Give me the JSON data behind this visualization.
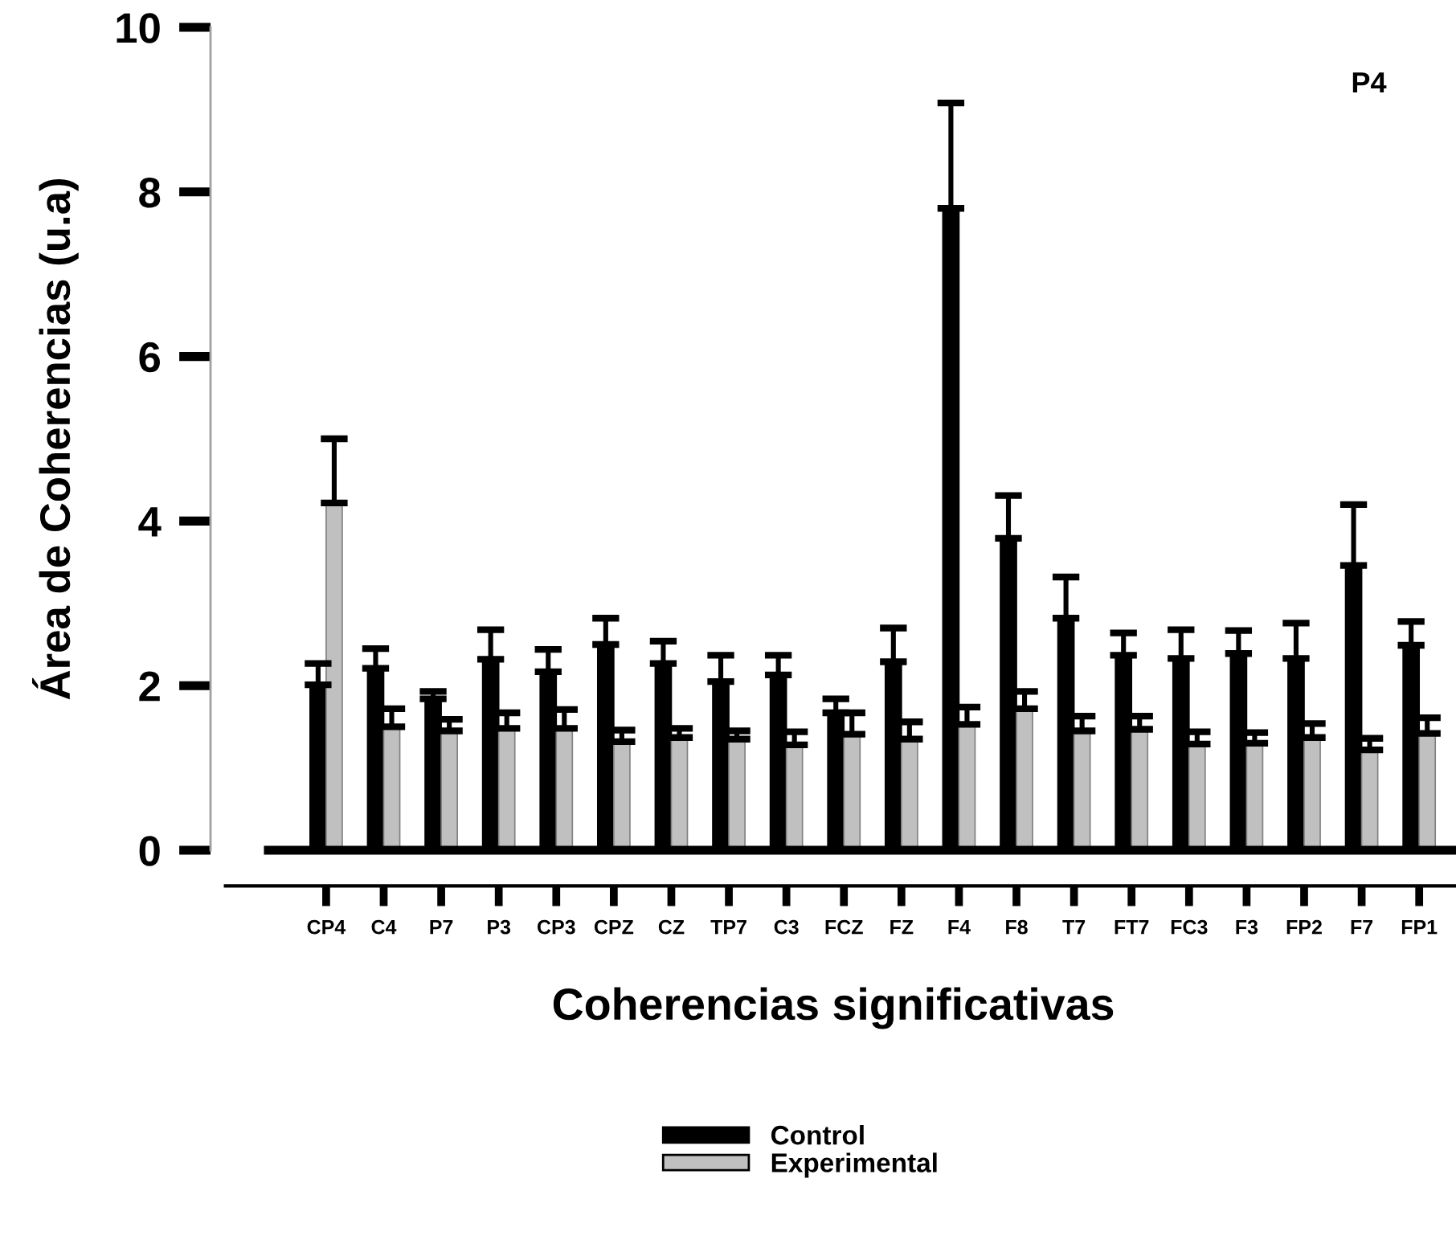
{
  "chart_data": {
    "type": "bar",
    "xlabel": "Coherencias significativas",
    "ylabel": "Área de Coherencias (u.a)",
    "annotations": [
      "P4"
    ],
    "categories": [
      "CP4",
      "C4",
      "P7",
      "P3",
      "CP3",
      "CPZ",
      "CZ",
      "TP7",
      "C3",
      "FCZ",
      "FZ",
      "F4",
      "F8",
      "T7",
      "FT7",
      "FC3",
      "F3",
      "FP2",
      "F7",
      "FP1"
    ],
    "series": [
      {
        "name": "Control",
        "color": "#000000",
        "values": [
          2.01,
          2.21,
          1.84,
          2.32,
          2.17,
          2.5,
          2.27,
          2.05,
          2.13,
          1.67,
          2.29,
          7.8,
          3.79,
          2.82,
          2.37,
          2.33,
          2.39,
          2.33,
          3.46,
          2.49
        ],
        "errors": [
          [
            2.01,
            2.27
          ],
          [
            2.21,
            2.45
          ],
          [
            1.84,
            1.93
          ],
          [
            2.32,
            2.68
          ],
          [
            2.17,
            2.44
          ],
          [
            2.5,
            2.82
          ],
          [
            2.27,
            2.54
          ],
          [
            2.05,
            2.37
          ],
          [
            2.13,
            2.37
          ],
          [
            1.67,
            1.84
          ],
          [
            2.29,
            2.7
          ],
          [
            7.8,
            9.08
          ],
          [
            3.79,
            4.31
          ],
          [
            2.82,
            3.32
          ],
          [
            2.37,
            2.64
          ],
          [
            2.33,
            2.68
          ],
          [
            2.39,
            2.67
          ],
          [
            2.33,
            2.76
          ],
          [
            3.46,
            4.2
          ],
          [
            2.49,
            2.78
          ]
        ]
      },
      {
        "name": "Experimental",
        "color": "#c0c0c0",
        "values": [
          4.22,
          1.5,
          1.45,
          1.48,
          1.48,
          1.32,
          1.37,
          1.35,
          1.28,
          1.41,
          1.35,
          1.53,
          1.72,
          1.45,
          1.47,
          1.29,
          1.3,
          1.37,
          1.22,
          1.42
        ],
        "errors": [
          [
            4.22,
            5.0
          ],
          [
            1.5,
            1.72
          ],
          [
            1.45,
            1.59
          ],
          [
            1.48,
            1.67
          ],
          [
            1.48,
            1.71
          ],
          [
            1.32,
            1.46
          ],
          [
            1.37,
            1.48
          ],
          [
            1.35,
            1.45
          ],
          [
            1.28,
            1.44
          ],
          [
            1.41,
            1.67
          ],
          [
            1.35,
            1.56
          ],
          [
            1.53,
            1.74
          ],
          [
            1.72,
            1.93
          ],
          [
            1.45,
            1.63
          ],
          [
            1.47,
            1.63
          ],
          [
            1.29,
            1.44
          ],
          [
            1.3,
            1.43
          ],
          [
            1.37,
            1.54
          ],
          [
            1.22,
            1.36
          ],
          [
            1.42,
            1.61
          ]
        ]
      }
    ],
    "ylim": [
      0,
      10
    ],
    "yticks": [
      0,
      2,
      4,
      6,
      8,
      10
    ],
    "grid": false,
    "legend": "bottom"
  }
}
